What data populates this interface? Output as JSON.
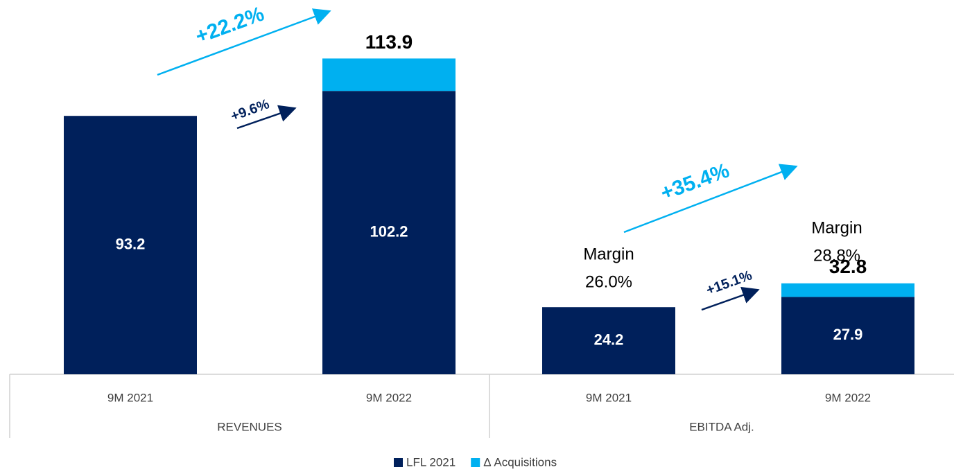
{
  "chart_data": {
    "type": "stacked-bar",
    "categories": [
      "9M 2021",
      "9M 2022",
      "9M 2021",
      "9M 2022"
    ],
    "groups": [
      "REVENUES",
      "EBITDA Adj."
    ],
    "series": [
      {
        "name": "LFL 2021",
        "color": "#00205b",
        "values": [
          93.2,
          102.2,
          24.2,
          27.9
        ]
      },
      {
        "name": "Δ Acquisitions",
        "color": "#00b0f0",
        "values": [
          null,
          11.7,
          null,
          4.9
        ]
      }
    ],
    "totals": [
      null,
      113.9,
      null,
      32.8
    ],
    "margins": [
      {
        "label": "Margin",
        "value": "26.0%"
      },
      {
        "label": "Margin",
        "value": "28.8%"
      }
    ],
    "growth": [
      "+22.2%",
      "+9.6%",
      "+35.4%",
      "+15.1%"
    ],
    "ylim": [
      0,
      135
    ]
  }
}
